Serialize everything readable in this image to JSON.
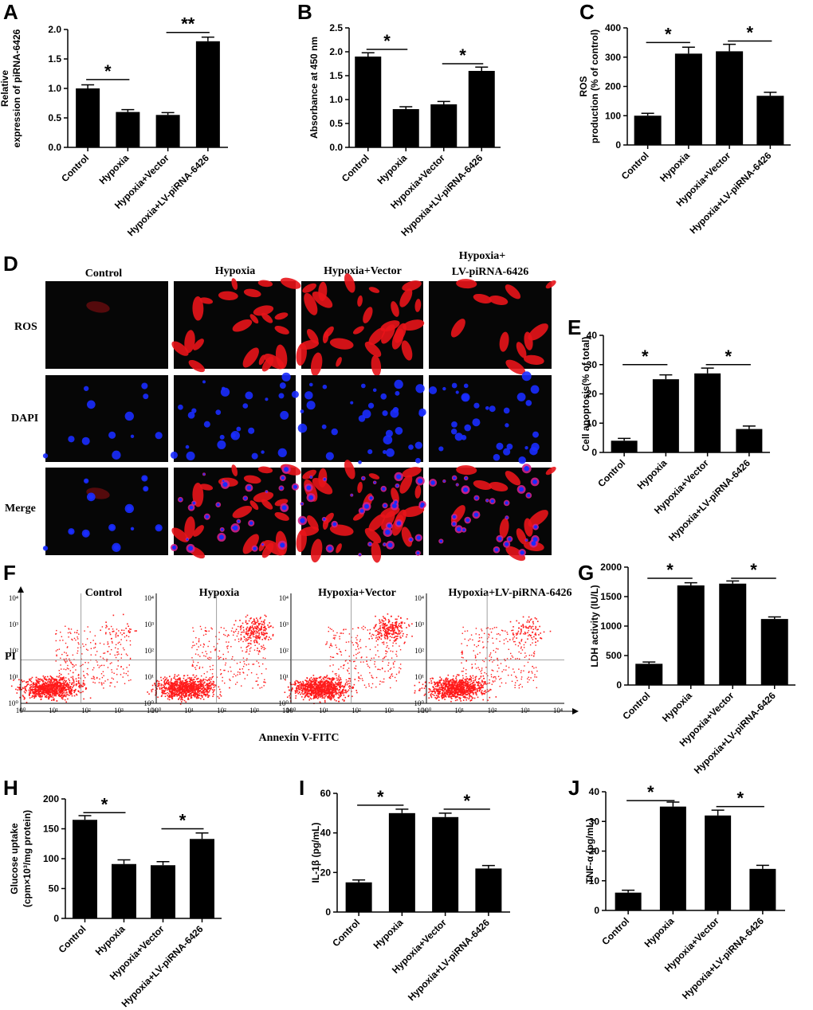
{
  "chart_data": [
    {
      "id": "A",
      "letter": "A",
      "type": "bar",
      "ylabel": [
        "Relative",
        "expression of piRNA-6426"
      ],
      "categories": [
        "Control",
        "Hypoxia",
        "Hypoxia+Vector",
        "Hypoxia+LV-piRNA-6426"
      ],
      "values": [
        1.0,
        0.6,
        0.55,
        1.8
      ],
      "errors": [
        0.06,
        0.04,
        0.04,
        0.07
      ],
      "ylim": [
        0,
        2.0
      ],
      "yticks": [
        0,
        0.5,
        1.0,
        1.5,
        2.0
      ],
      "ytick_labels": [
        "0.0",
        "0.5",
        "1.0",
        "1.5",
        "2.0"
      ],
      "annotations": [
        {
          "from": 0,
          "to": 1,
          "y": 1.15,
          "text": "*"
        },
        {
          "from": 2,
          "to": 3,
          "y": 1.95,
          "text": "**"
        }
      ]
    },
    {
      "id": "B",
      "letter": "B",
      "type": "bar",
      "ylabel": [
        "Absorbance at 450 nm"
      ],
      "categories": [
        "Control",
        "Hypoxia",
        "Hypoxia+Vector",
        "Hypoxia+LV-piRNA-6426"
      ],
      "values": [
        1.9,
        0.8,
        0.9,
        1.6
      ],
      "errors": [
        0.08,
        0.05,
        0.06,
        0.08
      ],
      "ylim": [
        0,
        2.5
      ],
      "yticks": [
        0,
        0.5,
        1.0,
        1.5,
        2.0,
        2.5
      ],
      "ytick_labels": [
        "0.0",
        "0.5",
        "1.0",
        "1.5",
        "2.0",
        "2.5"
      ],
      "annotations": [
        {
          "from": 0,
          "to": 1,
          "y": 2.05,
          "text": "*"
        },
        {
          "from": 2,
          "to": 3,
          "y": 1.75,
          "text": "*"
        }
      ]
    },
    {
      "id": "C",
      "letter": "C",
      "type": "bar",
      "ylabel": [
        "ROS",
        "production (% of control)"
      ],
      "categories": [
        "Control",
        "Hypoxia",
        "Hypoxia+Vector",
        "Hypoxia+LV-piRNA-6426"
      ],
      "values": [
        100,
        312,
        320,
        168
      ],
      "errors": [
        8,
        22,
        24,
        12
      ],
      "ylim": [
        0,
        400
      ],
      "yticks": [
        0,
        100,
        200,
        300,
        400
      ],
      "ytick_labels": [
        "0",
        "100",
        "200",
        "300",
        "400"
      ],
      "annotations": [
        {
          "from": 0,
          "to": 1,
          "y": 350,
          "text": "*"
        },
        {
          "from": 2,
          "to": 3,
          "y": 355,
          "text": "*"
        }
      ]
    },
    {
      "id": "E",
      "letter": "E",
      "type": "bar",
      "ylabel": [
        "Cell apoptosis(% of total)"
      ],
      "categories": [
        "Control",
        "Hypoxia",
        "Hypoxia+Vector",
        "Hypoxia+LV-piRNA-6426"
      ],
      "values": [
        4,
        25,
        27,
        8
      ],
      "errors": [
        0.8,
        1.5,
        1.8,
        1.0
      ],
      "ylim": [
        0,
        40
      ],
      "yticks": [
        0,
        10,
        20,
        30,
        40
      ],
      "ytick_labels": [
        "0",
        "10",
        "20",
        "30",
        "40"
      ],
      "annotations": [
        {
          "from": 0,
          "to": 1,
          "y": 30,
          "text": "*"
        },
        {
          "from": 2,
          "to": 3,
          "y": 30,
          "text": "*"
        }
      ]
    },
    {
      "id": "G",
      "letter": "G",
      "type": "bar",
      "ylabel": [
        "LDH activity (IU/L)"
      ],
      "categories": [
        "Control",
        "Hypoxia",
        "Hypoxia+Vector",
        "Hypoxia+LV-piRNA-6426"
      ],
      "values": [
        360,
        1690,
        1720,
        1120
      ],
      "errors": [
        30,
        45,
        45,
        35
      ],
      "ylim": [
        0,
        2000
      ],
      "yticks": [
        0,
        500,
        1000,
        1500,
        2000
      ],
      "ytick_labels": [
        "0",
        "500",
        "1000",
        "1500",
        "2000"
      ],
      "annotations": [
        {
          "from": 0,
          "to": 1,
          "y": 1810,
          "text": "*"
        },
        {
          "from": 2,
          "to": 3,
          "y": 1810,
          "text": "*"
        }
      ]
    },
    {
      "id": "H",
      "letter": "H",
      "type": "bar",
      "ylabel": [
        "Glucose uptake",
        "(cpm×10³/mg protein)"
      ],
      "categories": [
        "Control",
        "Hypoxia",
        "Hypoxia+Vector",
        "Hypoxia+LV-piRNA-6426"
      ],
      "values": [
        165,
        91,
        89,
        133
      ],
      "errors": [
        7,
        7,
        6,
        10
      ],
      "ylim": [
        0,
        200
      ],
      "yticks": [
        0,
        50,
        100,
        150,
        200
      ],
      "ytick_labels": [
        "0",
        "50",
        "100",
        "150",
        "200"
      ],
      "annotations": [
        {
          "from": 0,
          "to": 1,
          "y": 177,
          "text": "*"
        },
        {
          "from": 2,
          "to": 3,
          "y": 150,
          "text": "*"
        }
      ]
    },
    {
      "id": "I",
      "letter": "I",
      "type": "bar",
      "ylabel": [
        "IL-1β  (pg/mL)"
      ],
      "categories": [
        "Control",
        "Hypoxia",
        "Hypoxia+Vector",
        "Hypoxia+LV-piRNA-6426"
      ],
      "values": [
        15,
        50,
        48,
        22
      ],
      "errors": [
        1.2,
        2.0,
        2.0,
        1.5
      ],
      "ylim": [
        0,
        60
      ],
      "yticks": [
        0,
        20,
        40,
        60
      ],
      "ytick_labels": [
        "0",
        "20",
        "40",
        "60"
      ],
      "annotations": [
        {
          "from": 0,
          "to": 1,
          "y": 54,
          "text": "*"
        },
        {
          "from": 2,
          "to": 3,
          "y": 52,
          "text": "*"
        }
      ]
    },
    {
      "id": "J",
      "letter": "J",
      "type": "bar",
      "ylabel": [
        "TNF-α  (pg/mL)"
      ],
      "categories": [
        "Control",
        "Hypoxia",
        "Hypoxia+Vector",
        "Hypoxia+LV-piRNA-6426"
      ],
      "values": [
        6,
        35,
        32,
        14
      ],
      "errors": [
        0.8,
        1.5,
        1.8,
        1.2
      ],
      "ylim": [
        0,
        40
      ],
      "yticks": [
        0,
        10,
        20,
        30,
        40
      ],
      "ytick_labels": [
        "0",
        "10",
        "20",
        "30",
        "40"
      ],
      "annotations": [
        {
          "from": 0,
          "to": 1,
          "y": 37,
          "text": "*"
        },
        {
          "from": 2,
          "to": 3,
          "y": 35,
          "text": "*"
        }
      ]
    }
  ],
  "panel_d": {
    "letter": "D",
    "columns": [
      "Control",
      "Hypoxia",
      "Hypoxia+Vector",
      "Hypoxia+\nLV-piRNA-6426"
    ],
    "column_labels": [
      "Control",
      "Hypoxia",
      "Hypoxia+Vector",
      "Hypoxia+",
      "LV-piRNA-6426"
    ],
    "rows": [
      "ROS",
      "DAPI",
      "Merge"
    ]
  },
  "panel_f": {
    "letter": "F",
    "titles": [
      "Control",
      "Hypoxia",
      "Hypoxia+Vector",
      "Hypoxia+LV-piRNA-6426"
    ],
    "xlabel": "Annexin  V-FITC",
    "ylabel": "PI",
    "tick_labels": [
      "10⁰",
      "10¹",
      "10²",
      "10³",
      "10⁴"
    ]
  },
  "colors": {
    "bar": "#000000",
    "background": "#ffffff",
    "micro_bg": "#060606",
    "ros": "#e8141a",
    "dapi": "#1a2cff",
    "merge": "#d0208a",
    "flow_dot": "#ff1a1a"
  }
}
